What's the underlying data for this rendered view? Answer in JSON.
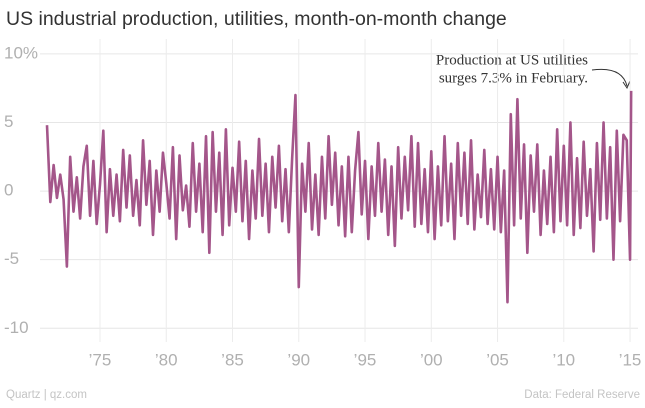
{
  "chart_data": {
    "type": "line",
    "title": "US industrial production, utilities, month-on-month change",
    "annotation": [
      "Production at US utilities",
      "surges 7.3% in February."
    ],
    "source": "Data: Federal Reserve",
    "credit": "Quartz | qz.com",
    "color": "#a4568a",
    "grid": true,
    "xlim": [
      1970,
      2015.6
    ],
    "ylim": [
      -11,
      10.5
    ],
    "xticks": [
      {
        "value": 1975,
        "label": "’75"
      },
      {
        "value": 1980,
        "label": "’80"
      },
      {
        "value": 1985,
        "label": "’85"
      },
      {
        "value": 1990,
        "label": "’90"
      },
      {
        "value": 1995,
        "label": "’95"
      },
      {
        "value": 2000,
        "label": "’00"
      },
      {
        "value": 2005,
        "label": "’05"
      },
      {
        "value": 2010,
        "label": "’10"
      },
      {
        "value": 2015,
        "label": "’15"
      }
    ],
    "yticks": [
      {
        "value": 10,
        "label": "10%"
      },
      5,
      0,
      -5,
      -10
    ],
    "x": [
      1971,
      1971.25,
      1971.5,
      1971.75,
      1972,
      1972.25,
      1972.5,
      1972.75,
      1973,
      1973.25,
      1973.5,
      1973.75,
      1974,
      1974.25,
      1974.5,
      1974.75,
      1975,
      1975.25,
      1975.5,
      1975.75,
      1976,
      1976.25,
      1976.5,
      1976.75,
      1977,
      1977.25,
      1977.5,
      1977.75,
      1978,
      1978.25,
      1978.5,
      1978.75,
      1979,
      1979.25,
      1979.5,
      1979.75,
      1980,
      1980.25,
      1980.5,
      1980.75,
      1981,
      1981.25,
      1981.5,
      1981.75,
      1982,
      1982.25,
      1982.5,
      1982.75,
      1983,
      1983.25,
      1983.5,
      1983.75,
      1984,
      1984.25,
      1984.5,
      1984.75,
      1985,
      1985.25,
      1985.5,
      1985.75,
      1986,
      1986.25,
      1986.5,
      1986.75,
      1987,
      1987.25,
      1987.5,
      1987.75,
      1988,
      1988.25,
      1988.5,
      1988.75,
      1989,
      1989.25,
      1989.5,
      1989.75,
      1990,
      1990.25,
      1990.5,
      1990.75,
      1991,
      1991.25,
      1991.5,
      1991.75,
      1992,
      1992.25,
      1992.5,
      1992.75,
      1993,
      1993.25,
      1993.5,
      1993.75,
      1994,
      1994.25,
      1994.5,
      1994.75,
      1995,
      1995.25,
      1995.5,
      1995.75,
      1996,
      1996.25,
      1996.5,
      1996.75,
      1997,
      1997.25,
      1997.5,
      1997.75,
      1998,
      1998.25,
      1998.5,
      1998.75,
      1999,
      1999.25,
      1999.5,
      1999.75,
      2000,
      2000.25,
      2000.5,
      2000.75,
      2001,
      2001.25,
      2001.5,
      2001.75,
      2002,
      2002.25,
      2002.5,
      2002.75,
      2003,
      2003.25,
      2003.5,
      2003.75,
      2004,
      2004.25,
      2004.5,
      2004.75,
      2005,
      2005.25,
      2005.5,
      2005.75,
      2006,
      2006.25,
      2006.5,
      2006.75,
      2007,
      2007.25,
      2007.5,
      2007.75,
      2008,
      2008.25,
      2008.5,
      2008.75,
      2009,
      2009.25,
      2009.5,
      2009.75,
      2010,
      2010.25,
      2010.5,
      2010.75,
      2011,
      2011.25,
      2011.5,
      2011.75,
      2012,
      2012.25,
      2012.5,
      2012.75,
      2013,
      2013.25,
      2013.5,
      2013.75,
      2014,
      2014.25,
      2014.5,
      2014.75,
      2015,
      2015.083
    ],
    "values": [
      4.8,
      -0.8,
      1.9,
      -0.5,
      1.2,
      -0.6,
      -5.5,
      2.5,
      -1.5,
      1.0,
      -2.0,
      1.8,
      3.3,
      -1.8,
      2.2,
      -2.4,
      0.5,
      4.4,
      -3.0,
      1.6,
      -1.8,
      1.2,
      -2.2,
      3.0,
      -1.2,
      2.6,
      -1.8,
      0.8,
      -2.5,
      3.7,
      -1.0,
      2.2,
      -3.2,
      1.5,
      -1.5,
      2.8,
      0.6,
      -2.0,
      3.2,
      -3.5,
      2.6,
      -1.4,
      0.4,
      -2.6,
      3.5,
      -1.5,
      2.0,
      -3.0,
      4.0,
      -4.5,
      4.3,
      -1.5,
      2.8,
      -3.2,
      4.5,
      -2.5,
      1.7,
      -1.5,
      3.6,
      -2.2,
      2.2,
      -3.5,
      1.5,
      -2.0,
      3.8,
      -1.8,
      2.0,
      -3.0,
      2.5,
      -1.2,
      3.3,
      -2.2,
      1.6,
      -3.0,
      2.4,
      7.0,
      -7.0,
      2.0,
      -1.5,
      3.5,
      -2.8,
      1.2,
      -3.2,
      2.5,
      -2.0,
      4.0,
      -1.0,
      2.8,
      -2.5,
      1.8,
      -3.3,
      2.5,
      -3.0,
      1.5,
      4.3,
      -1.7,
      2.2,
      -3.5,
      1.8,
      -1.8,
      3.5,
      -1.5,
      2.3,
      -3.2,
      1.8,
      -4.0,
      3.2,
      -2.0,
      2.5,
      -1.4,
      4.0,
      -2.6,
      3.5,
      -2.4,
      1.6,
      -3.0,
      2.9,
      -3.5,
      1.8,
      -2.5,
      4.0,
      -2.2,
      2.0,
      -3.5,
      3.5,
      -1.8,
      2.8,
      -2.4,
      3.7,
      -2.8,
      1.2,
      -1.9,
      3.0,
      -2.4,
      1.6,
      -2.8,
      2.5,
      -3.0,
      1.5,
      -8.1,
      5.6,
      -2.5,
      6.7,
      -2.0,
      3.4,
      -4.5,
      2.6,
      -1.5,
      3.4,
      -3.2,
      1.5,
      -2.4,
      2.5,
      -3.0,
      4.5,
      -2.2,
      3.3,
      -2.5,
      5.0,
      -3.2,
      2.4,
      -2.7,
      3.6,
      -1.8,
      1.6,
      -4.4,
      3.5,
      -2.1,
      5.0,
      -2.0,
      3.2,
      -5.0,
      4.4,
      -2.2,
      4.1,
      3.7,
      -5.0,
      7.3
    ]
  }
}
